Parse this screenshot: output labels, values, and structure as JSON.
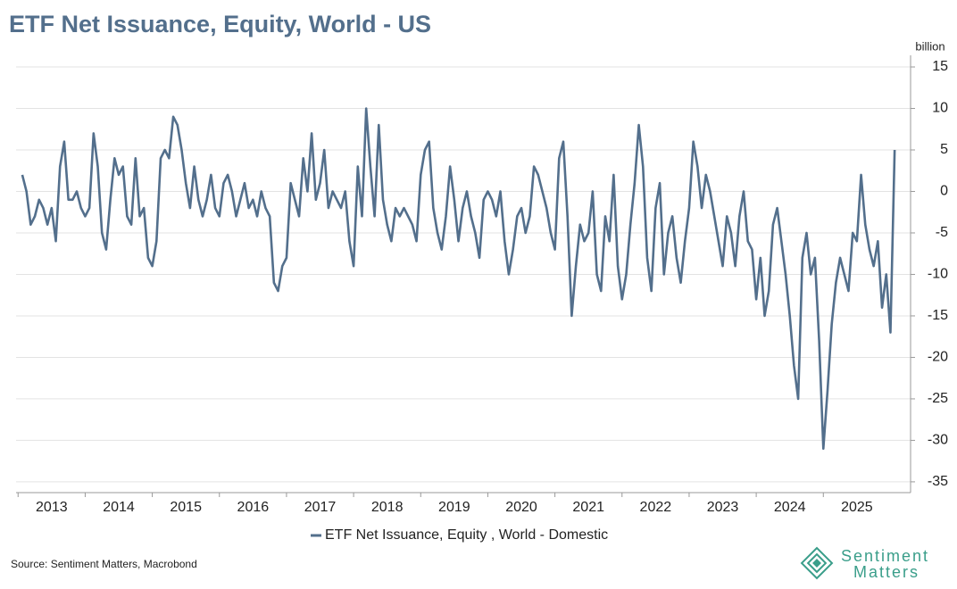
{
  "chart_data": {
    "type": "line",
    "title": "ETF Net Issuance, Equity, World - US",
    "y_label": "billion",
    "source": "Source: Sentiment Matters, Macrobond",
    "brand": [
      "Sentiment",
      "Matters"
    ],
    "x": [
      2013.0625,
      2013.125,
      2013.1875,
      2013.25,
      2013.3125,
      2013.375,
      2013.4375,
      2013.5,
      2013.5625,
      2013.625,
      2013.6875,
      2013.75,
      2013.8125,
      2013.875,
      2013.9375,
      2014,
      2014.0625,
      2014.125,
      2014.1875,
      2014.25,
      2014.3125,
      2014.375,
      2014.4375,
      2014.5,
      2014.5625,
      2014.625,
      2014.6875,
      2014.75,
      2014.8125,
      2014.875,
      2014.9375,
      2015,
      2015.0625,
      2015.125,
      2015.1875,
      2015.25,
      2015.3125,
      2015.375,
      2015.4375,
      2015.5,
      2015.5625,
      2015.625,
      2015.6875,
      2015.75,
      2015.8125,
      2015.875,
      2015.9375,
      2016,
      2016.0625,
      2016.125,
      2016.1875,
      2016.25,
      2016.3125,
      2016.375,
      2016.4375,
      2016.5,
      2016.5625,
      2016.625,
      2016.6875,
      2016.75,
      2016.8125,
      2016.875,
      2016.9375,
      2017,
      2017.0625,
      2017.125,
      2017.1875,
      2017.25,
      2017.3125,
      2017.375,
      2017.4375,
      2017.5,
      2017.5625,
      2017.625,
      2017.6875,
      2017.75,
      2017.8125,
      2017.875,
      2017.9375,
      2018,
      2018.0625,
      2018.125,
      2018.1875,
      2018.25,
      2018.3125,
      2018.375,
      2018.4375,
      2018.5,
      2018.5625,
      2018.625,
      2018.6875,
      2018.75,
      2018.8125,
      2018.875,
      2018.9375,
      2019,
      2019.0625,
      2019.125,
      2019.1875,
      2019.25,
      2019.3125,
      2019.375,
      2019.4375,
      2019.5,
      2019.5625,
      2019.625,
      2019.6875,
      2019.75,
      2019.8125,
      2019.875,
      2019.9375,
      2020,
      2020.0625,
      2020.125,
      2020.1875,
      2020.25,
      2020.3125,
      2020.375,
      2020.4375,
      2020.5,
      2020.5625,
      2020.625,
      2020.6875,
      2020.75,
      2020.8125,
      2020.875,
      2020.9375,
      2021,
      2021.0625,
      2021.125,
      2021.1875,
      2021.25,
      2021.3125,
      2021.375,
      2021.4375,
      2021.5,
      2021.5625,
      2021.625,
      2021.6875,
      2021.75,
      2021.8125,
      2021.875,
      2021.9375,
      2022,
      2022.0625,
      2022.125,
      2022.1875,
      2022.25,
      2022.3125,
      2022.375,
      2022.4375,
      2022.5,
      2022.5625,
      2022.625,
      2022.6875,
      2022.75,
      2022.8125,
      2022.875,
      2022.9375,
      2023,
      2023.0625,
      2023.125,
      2023.1875,
      2023.25,
      2023.3125,
      2023.375,
      2023.4375,
      2023.5,
      2023.5625,
      2023.625,
      2023.6875,
      2023.75,
      2023.8125,
      2023.875,
      2023.9375,
      2024,
      2024.0625,
      2024.125,
      2024.1875,
      2024.25,
      2024.3125,
      2024.375,
      2024.4375,
      2024.5,
      2024.5625,
      2024.625,
      2024.6875,
      2024.75,
      2024.8125,
      2024.875,
      2024.9375,
      2025,
      2025.0625,
      2025.125,
      2025.1875,
      2025.25,
      2025.3125,
      2025.375,
      2025.4375,
      2025.5,
      2025.5625,
      2025.625,
      2025.6875,
      2025.75,
      2025.8125,
      2025.875,
      2025.9375,
      2026,
      2026.0625
    ],
    "series": [
      {
        "name": "ETF Net Issuance, Equity , World - Domestic",
        "color": "#536f8c",
        "values": [
          2,
          0,
          -4,
          -3,
          -1,
          -2,
          -4,
          -2,
          -6,
          3,
          6,
          -1,
          -1,
          0,
          -2,
          -3,
          -2,
          7,
          3,
          -5,
          -7,
          -1,
          4,
          2,
          3,
          -3,
          -4,
          4,
          -3,
          -2,
          -8,
          -9,
          -6,
          4,
          5,
          4,
          9,
          8,
          5,
          1,
          -2,
          3,
          -1,
          -3,
          -1,
          2,
          -2,
          -3,
          1,
          2,
          0,
          -3,
          -1,
          1,
          -2,
          -1,
          -3,
          0,
          -2,
          -3,
          -11,
          -12,
          -9,
          -8,
          1,
          -1,
          -3,
          4,
          0,
          7,
          -1,
          1,
          5,
          -2,
          0,
          -1,
          -2,
          0,
          -6,
          -9,
          3,
          -3,
          10,
          3,
          -3,
          8,
          -1,
          -4,
          -6,
          -2,
          -3,
          -2,
          -3,
          -4,
          -6,
          2,
          5,
          6,
          -2,
          -5,
          -7,
          -3,
          3,
          -1,
          -6,
          -2,
          0,
          -3,
          -5,
          -8,
          -1,
          0,
          -1,
          -3,
          0,
          -6,
          -10,
          -7,
          -3,
          -2,
          -5,
          -3,
          3,
          2,
          0,
          -2,
          -5,
          -7,
          4,
          6,
          -3,
          -15,
          -9,
          -4,
          -6,
          -5,
          0,
          -10,
          -12,
          -3,
          -6,
          2,
          -9,
          -13,
          -10,
          -4,
          1,
          8,
          3,
          -8,
          -12,
          -2,
          1,
          -10,
          -5,
          -3,
          -8,
          -11,
          -6,
          -2,
          6,
          3,
          -2,
          2,
          0,
          -3,
          -6,
          -9,
          -3,
          -5,
          -9,
          -3,
          0,
          -6,
          -7,
          -13,
          -8,
          -15,
          -12,
          -4,
          -2,
          -6,
          -10,
          -15,
          -21,
          -25,
          -8,
          -5,
          -10,
          -8,
          -18,
          -31,
          -24,
          -16,
          -11,
          -8,
          -10,
          -12,
          -5,
          -6,
          2,
          -4,
          -7,
          -9,
          -6,
          -14,
          -10,
          -17,
          5
        ]
      }
    ],
    "xlim": [
      2012.97,
      2026.3
    ],
    "xticks": [
      2013,
      2014,
      2015,
      2016,
      2017,
      2018,
      2019,
      2020,
      2021,
      2022,
      2023,
      2024,
      2025
    ],
    "ylim": [
      -36.3,
      16.4
    ],
    "yticks": [
      15,
      10,
      5,
      0,
      -5,
      -10,
      -15,
      -20,
      -25,
      -30,
      -35
    ],
    "grid": true
  }
}
